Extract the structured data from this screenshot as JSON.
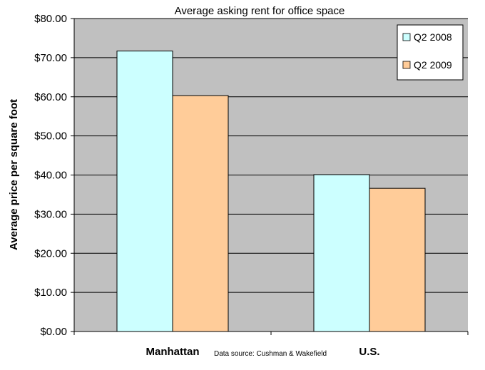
{
  "chart_data": {
    "type": "bar",
    "title": "Average asking rent for office space",
    "xlabel": "",
    "ylabel": "Average price per square foot",
    "categories": [
      "Manhattan",
      "U.S."
    ],
    "series": [
      {
        "name": "Q2 2008",
        "values": [
          71.7,
          40.1
        ],
        "color": "#ccffff"
      },
      {
        "name": "Q2 2009",
        "values": [
          60.3,
          36.6
        ],
        "color": "#ffcc99"
      }
    ],
    "ylim": [
      0,
      80
    ],
    "yticks": [
      0,
      10,
      20,
      30,
      40,
      50,
      60,
      70,
      80
    ],
    "ytick_labels": [
      "$0.00",
      "$10.00",
      "$20.00",
      "$30.00",
      "$40.00",
      "$50.00",
      "$60.00",
      "$70.00",
      "$80.00"
    ],
    "grid": true,
    "legend_position": "top-right",
    "plot_background": "#c0c0c0",
    "annotation": "Data source: Cushman & Wakefield"
  }
}
